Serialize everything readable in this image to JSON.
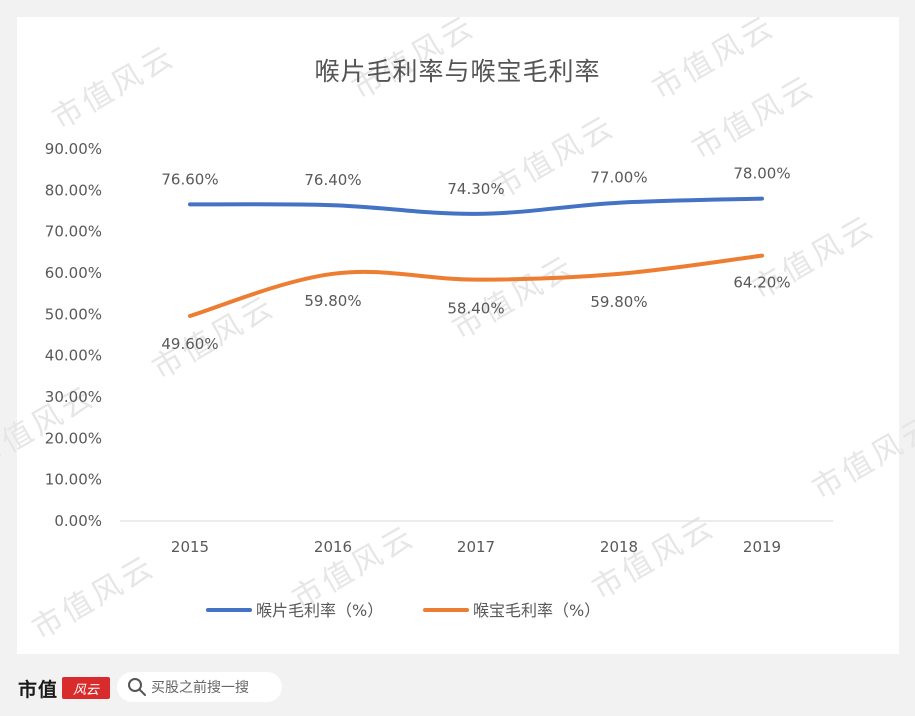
{
  "chart_data": {
    "type": "line",
    "title": "喉片毛利率与喉宝毛利率",
    "categories": [
      "2015",
      "2016",
      "2017",
      "2018",
      "2019"
    ],
    "series": [
      {
        "name": "喉片毛利率（%）",
        "color": "#4472C4",
        "values": [
          76.6,
          76.4,
          74.3,
          77.0,
          78.0
        ],
        "labels": [
          "76.60%",
          "76.40%",
          "74.30%",
          "77.00%",
          "78.00%"
        ]
      },
      {
        "name": "喉宝毛利率（%）",
        "color": "#ED7D31",
        "values": [
          49.6,
          59.8,
          58.4,
          59.8,
          64.2
        ],
        "labels": [
          "49.60%",
          "59.80%",
          "58.40%",
          "59.80%",
          "64.20%"
        ]
      }
    ],
    "yticks": [
      "0.00%",
      "10.00%",
      "20.00%",
      "30.00%",
      "40.00%",
      "50.00%",
      "60.00%",
      "70.00%",
      "80.00%",
      "90.00%"
    ],
    "ylim": [
      0,
      90
    ],
    "xlabel": "",
    "ylabel": "",
    "grid": false,
    "legend": "bottom"
  },
  "watermark": "市值风云",
  "footer": {
    "logo_text": "市值",
    "logo_mark": "风云",
    "search_placeholder": "买股之前搜一搜",
    "search_icon": "search-icon"
  }
}
